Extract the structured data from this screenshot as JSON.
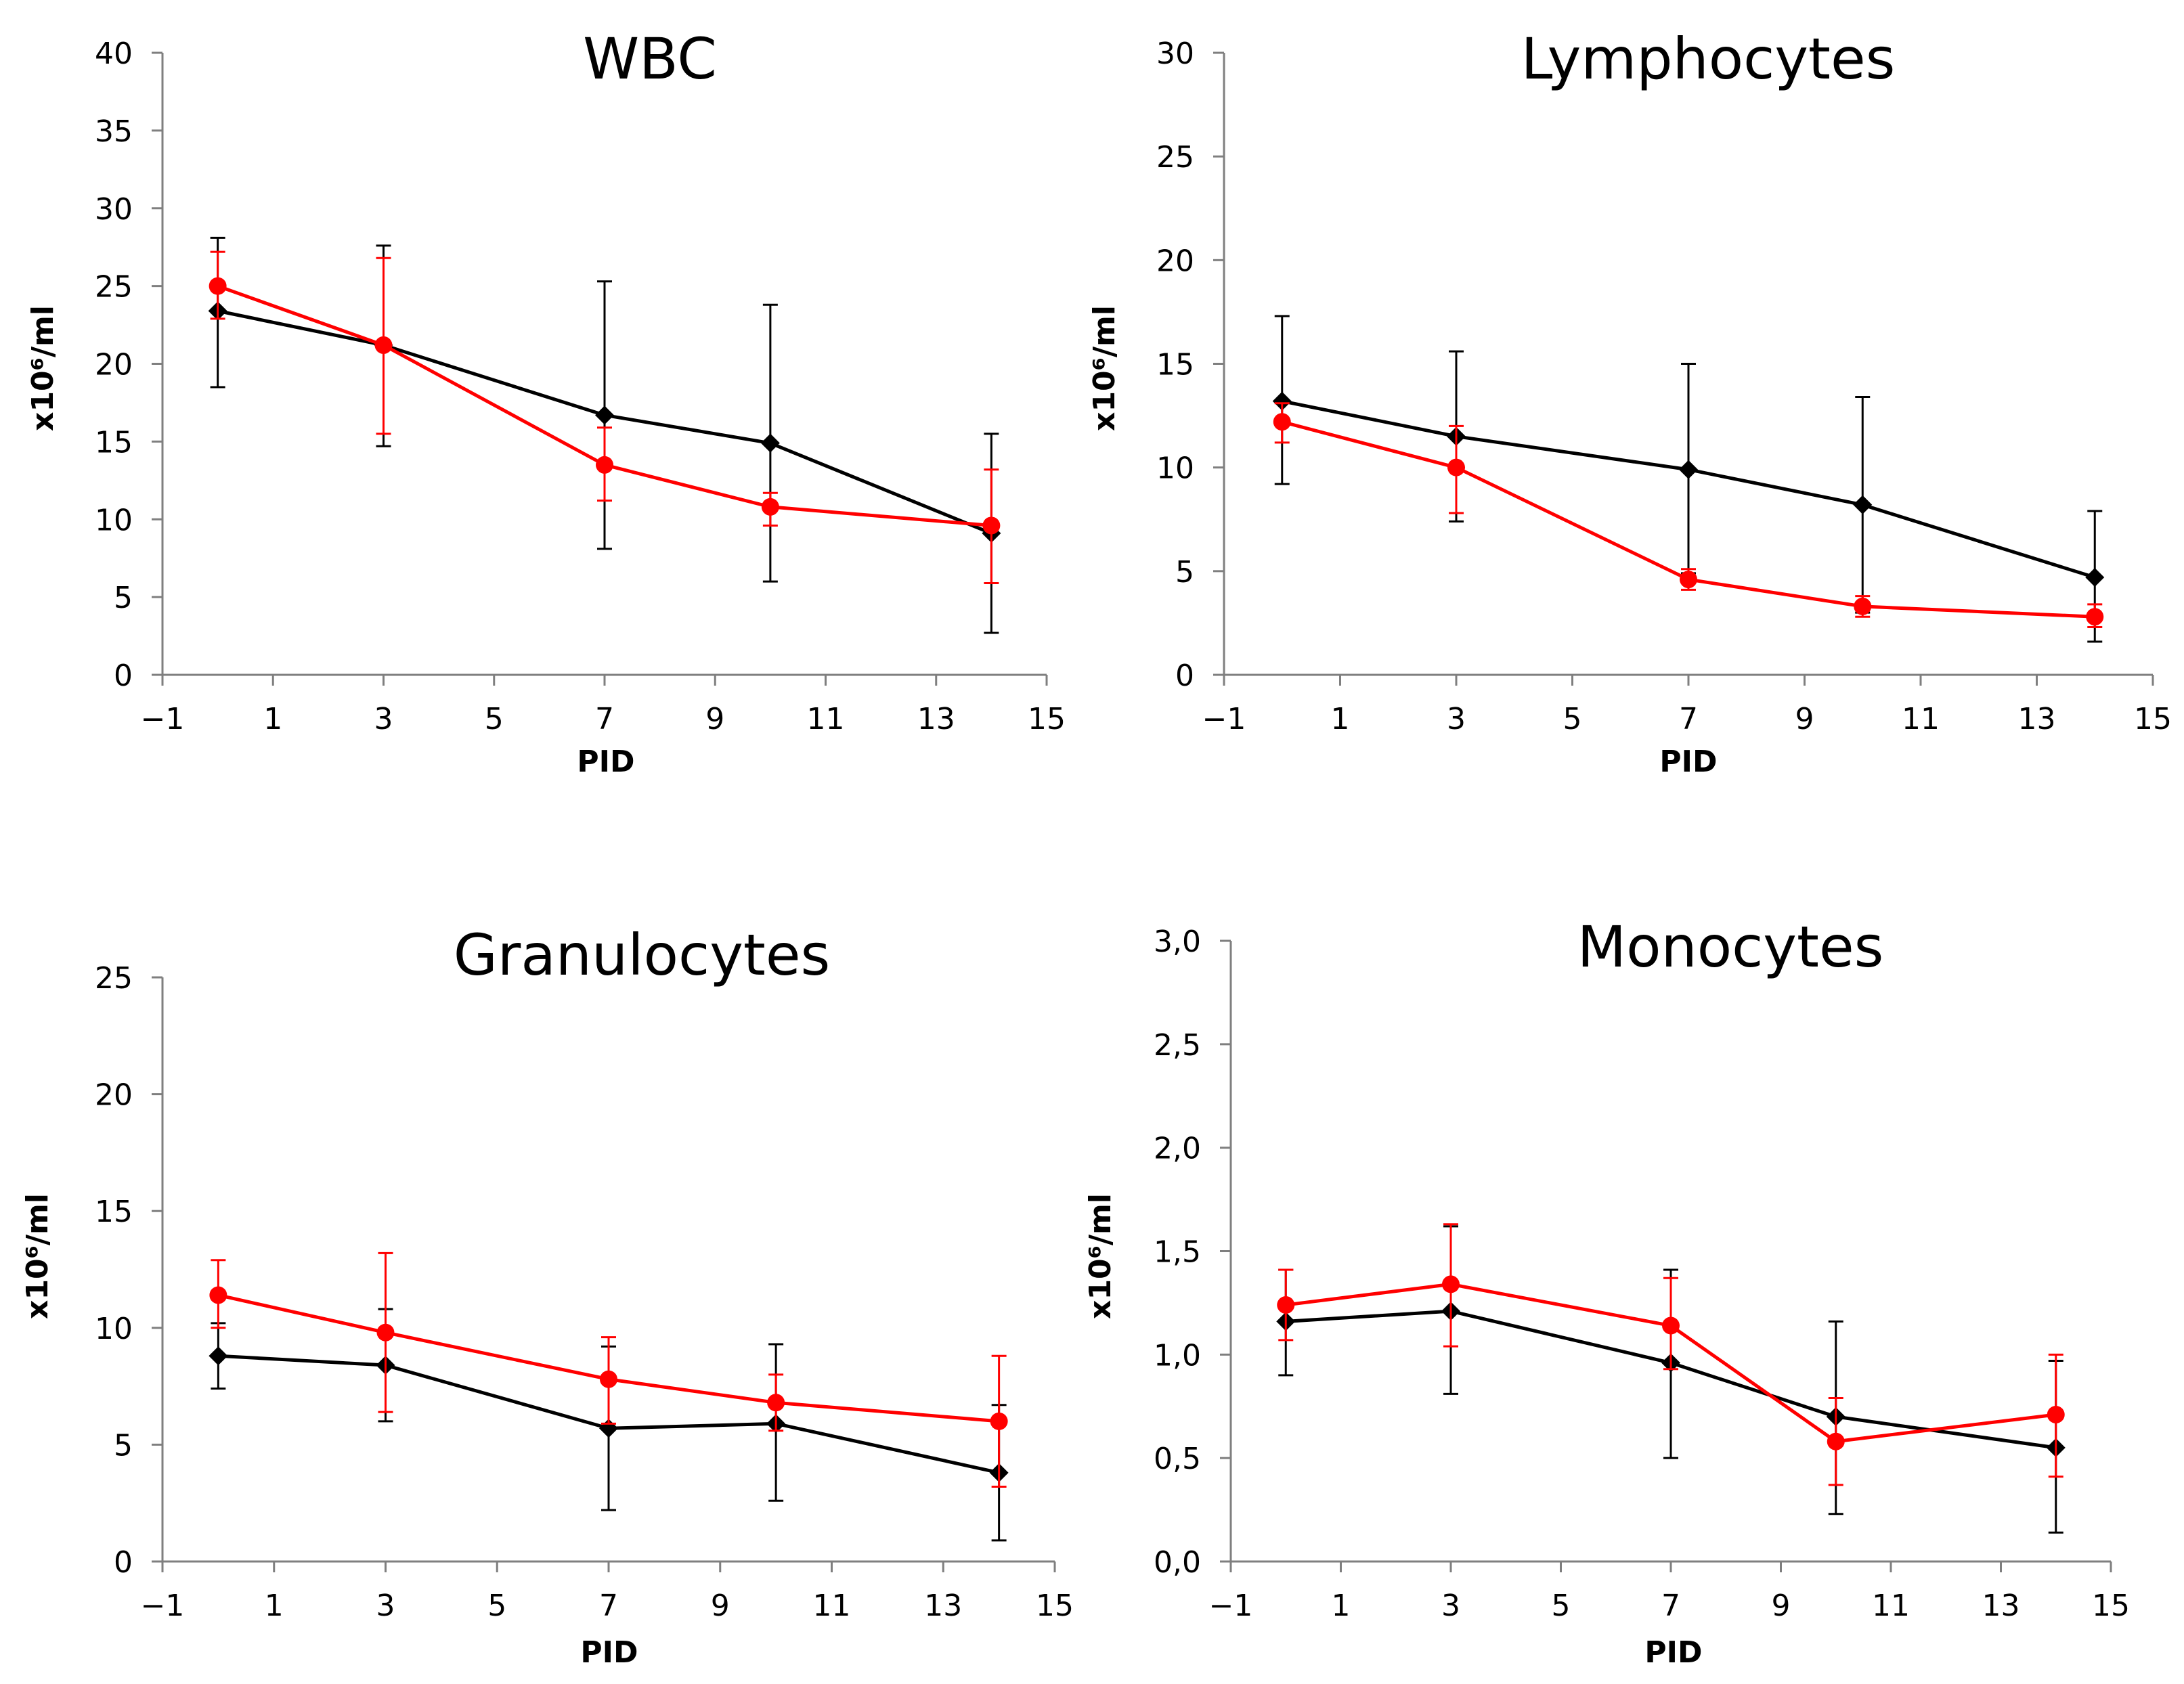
{
  "colors": {
    "series_black": "#000000",
    "series_red": "#ff0000",
    "axis": "#7f7f7f"
  },
  "chart_data": [
    {
      "id": "wbc",
      "type": "line",
      "title": "WBC",
      "xlabel": "PID",
      "ylabel": "x10⁶/ml",
      "xlim": [
        -1,
        15
      ],
      "xticks": [
        -1,
        1,
        3,
        5,
        7,
        9,
        11,
        13,
        15
      ],
      "xtick_labels": [
        "−1",
        "1",
        "3",
        "5",
        "7",
        "9",
        "11",
        "13",
        "15"
      ],
      "ylim": [
        0,
        40
      ],
      "yticks": [
        0,
        5,
        10,
        15,
        20,
        25,
        30,
        35,
        40
      ],
      "ytick_labels": [
        "0",
        "5",
        "10",
        "15",
        "20",
        "25",
        "30",
        "35",
        "40"
      ],
      "x": [
        0,
        3,
        7,
        10,
        14
      ],
      "series": [
        {
          "name": "black",
          "marker": "diamond",
          "color": "#000000",
          "values": [
            23.4,
            21.2,
            16.7,
            14.9,
            9.1
          ],
          "err_low": [
            18.5,
            14.7,
            8.1,
            6.0,
            2.7
          ],
          "err_high": [
            28.1,
            27.6,
            25.3,
            23.8,
            15.5
          ]
        },
        {
          "name": "red",
          "marker": "circle",
          "color": "#ff0000",
          "values": [
            25.0,
            21.2,
            13.5,
            10.8,
            9.6
          ],
          "err_low": [
            22.9,
            15.5,
            11.2,
            9.6,
            5.9
          ],
          "err_high": [
            27.2,
            26.8,
            15.9,
            11.7,
            13.2
          ]
        }
      ]
    },
    {
      "id": "lymphocytes",
      "type": "line",
      "title": "Lymphocytes",
      "xlabel": "PID",
      "ylabel": "x10⁶/ml",
      "xlim": [
        -1,
        15
      ],
      "xticks": [
        -1,
        1,
        3,
        5,
        7,
        9,
        11,
        13,
        15
      ],
      "xtick_labels": [
        "−1",
        "1",
        "3",
        "5",
        "7",
        "9",
        "11",
        "13",
        "15"
      ],
      "ylim": [
        0,
        30
      ],
      "yticks": [
        0,
        5,
        10,
        15,
        20,
        25,
        30
      ],
      "ytick_labels": [
        "0",
        "5",
        "10",
        "15",
        "20",
        "25",
        "30"
      ],
      "x": [
        0,
        3,
        7,
        10,
        14
      ],
      "series": [
        {
          "name": "black",
          "marker": "diamond",
          "color": "#000000",
          "values": [
            13.2,
            11.5,
            9.9,
            8.2,
            4.7
          ],
          "err_low": [
            9.2,
            7.4,
            4.9,
            3.0,
            1.6
          ],
          "err_high": [
            17.3,
            15.6,
            15.0,
            13.4,
            7.9
          ]
        },
        {
          "name": "red",
          "marker": "circle",
          "color": "#ff0000",
          "values": [
            12.2,
            10.0,
            4.6,
            3.3,
            2.8
          ],
          "err_low": [
            11.2,
            7.8,
            4.1,
            2.8,
            2.3
          ],
          "err_high": [
            13.1,
            12.0,
            5.1,
            3.8,
            3.4
          ]
        }
      ]
    },
    {
      "id": "granulocytes",
      "type": "line",
      "title": "Granulocytes",
      "xlabel": "PID",
      "ylabel": "x10⁶/ml",
      "xlim": [
        -1,
        15
      ],
      "xticks": [
        -1,
        1,
        3,
        5,
        7,
        9,
        11,
        13,
        15
      ],
      "xtick_labels": [
        "−1",
        "1",
        "3",
        "5",
        "7",
        "9",
        "11",
        "13",
        "15"
      ],
      "ylim": [
        0,
        25
      ],
      "yticks": [
        0,
        5,
        10,
        15,
        20,
        25
      ],
      "ytick_labels": [
        "0",
        "5",
        "10",
        "15",
        "20",
        "25"
      ],
      "x": [
        0,
        3,
        7,
        10,
        14
      ],
      "series": [
        {
          "name": "black",
          "marker": "diamond",
          "color": "#000000",
          "values": [
            8.8,
            8.4,
            5.7,
            5.9,
            3.8
          ],
          "err_low": [
            7.4,
            6.0,
            2.2,
            2.6,
            0.9
          ],
          "err_high": [
            10.2,
            10.8,
            9.2,
            9.3,
            6.7
          ]
        },
        {
          "name": "red",
          "marker": "circle",
          "color": "#ff0000",
          "values": [
            11.4,
            9.8,
            7.8,
            6.8,
            6.0
          ],
          "err_low": [
            10.0,
            6.4,
            5.9,
            5.6,
            3.2
          ],
          "err_high": [
            12.9,
            13.2,
            9.6,
            8.0,
            8.8
          ]
        }
      ]
    },
    {
      "id": "monocytes",
      "type": "line",
      "title": "Monocytes",
      "xlabel": "PID",
      "ylabel": "x10⁶/ml",
      "xlim": [
        -1,
        15
      ],
      "xticks": [
        -1,
        1,
        3,
        5,
        7,
        9,
        11,
        13,
        15
      ],
      "xtick_labels": [
        "−1",
        "1",
        "3",
        "5",
        "7",
        "9",
        "11",
        "13",
        "15"
      ],
      "ylim": [
        0,
        3
      ],
      "yticks": [
        0,
        0.5,
        1.0,
        1.5,
        2.0,
        2.5,
        3.0
      ],
      "ytick_labels": [
        "0,0",
        "0,5",
        "1,0",
        "1,5",
        "2,0",
        "2,5",
        "3,0"
      ],
      "x": [
        0,
        3,
        7,
        10,
        14
      ],
      "series": [
        {
          "name": "black",
          "marker": "diamond",
          "color": "#000000",
          "values": [
            1.16,
            1.21,
            0.96,
            0.7,
            0.55
          ],
          "err_low": [
            0.9,
            0.81,
            0.5,
            0.23,
            0.14
          ],
          "err_high": [
            1.41,
            1.62,
            1.41,
            1.16,
            0.97
          ]
        },
        {
          "name": "red",
          "marker": "circle",
          "color": "#ff0000",
          "values": [
            1.24,
            1.34,
            1.14,
            0.58,
            0.71
          ],
          "err_low": [
            1.07,
            1.04,
            0.93,
            0.37,
            0.41
          ],
          "err_high": [
            1.41,
            1.63,
            1.37,
            0.79,
            1.0
          ]
        }
      ]
    }
  ]
}
